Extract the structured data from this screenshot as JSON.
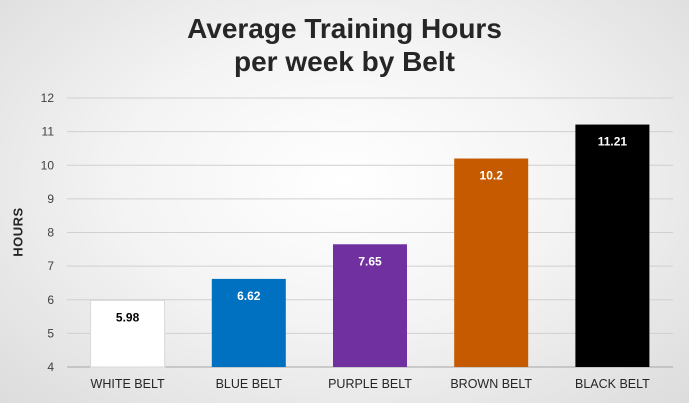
{
  "chart_data": {
    "type": "bar",
    "title_lines": [
      "Average Training Hours",
      "per week by Belt"
    ],
    "xlabel": "",
    "ylabel": "HOURS",
    "ylim": [
      4,
      12
    ],
    "yticks": [
      "4",
      "5",
      "6",
      "7",
      "8",
      "9",
      "10",
      "11",
      "12"
    ],
    "grid": true,
    "legend": "none",
    "categories": [
      "WHITE BELT",
      "BLUE BELT",
      "PURPLE BELT",
      "BROWN BELT",
      "BLACK BELT"
    ],
    "values": [
      5.98,
      6.62,
      7.65,
      10.2,
      11.21
    ],
    "value_labels": [
      "5.98",
      "6.62",
      "7.65",
      "10.2",
      "11.21"
    ],
    "bar_colors": [
      "#ffffff",
      "#0070c0",
      "#7030a0",
      "#c55a00",
      "#000000"
    ],
    "label_colors": [
      "#000000",
      "#ffffff",
      "#ffffff",
      "#ffffff",
      "#ffffff"
    ]
  }
}
